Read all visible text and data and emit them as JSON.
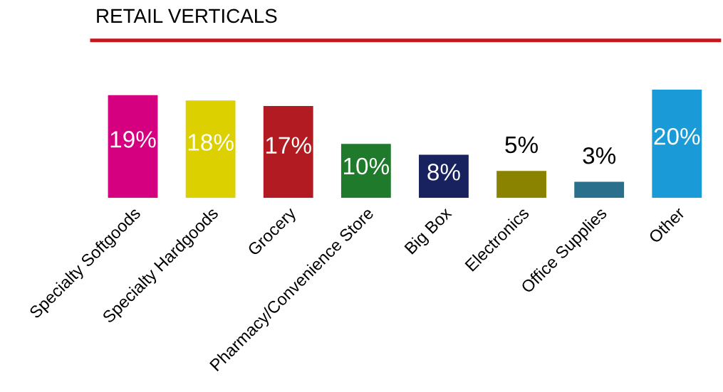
{
  "chart_data": {
    "type": "bar",
    "title": "RETAIL VERTICALS",
    "categories": [
      "Specialty Softgoods",
      "Specialty Hardgoods",
      "Grocery",
      "Pharmacy/Convenience Store",
      "Big Box",
      "Electronics",
      "Office Supplies",
      "Other"
    ],
    "values": [
      19,
      18,
      17,
      10,
      8,
      5,
      3,
      20
    ],
    "value_labels": [
      "19%",
      "18%",
      "17%",
      "10%",
      "8%",
      "5%",
      "3%",
      "20%"
    ],
    "colors": [
      "#d4007f",
      "#ddd000",
      "#b31b22",
      "#1f7a2c",
      "#18225e",
      "#8a8300",
      "#2a6f8c",
      "#1a9ad6"
    ],
    "grid": false,
    "legend": false
  }
}
